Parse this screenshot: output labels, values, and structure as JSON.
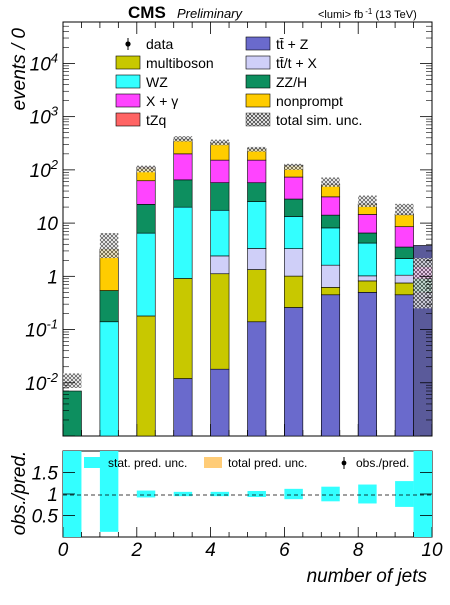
{
  "header": {
    "cms": "CMS",
    "preliminary": "Preliminary",
    "lumi": "<lumi> fb",
    "lumi_sup": "-1",
    "lumi_energy": "(13 TeV)"
  },
  "colors": {
    "data": "#000000",
    "multiboson": "#c8c800",
    "WZ": "#33ffff",
    "X_gamma": "#ff44ff",
    "tZq": "#ff6464",
    "ttZ": "#6a6acc",
    "ttX": "#cfcff8",
    "ZZH": "#0d8f5f",
    "nonprompt": "#ffcc00",
    "stat_unc": "#33ffff",
    "total_unc": "#ffcc77",
    "overflow": "#5a5a9a"
  },
  "chart_data": [
    {
      "type": "bar",
      "stacked": true,
      "log_y": true,
      "title": "",
      "xlabel": "",
      "ylabel": "events / 0",
      "xlim": [
        0,
        10
      ],
      "ylim": [
        0.001,
        60000
      ],
      "y_tick_labels": [
        "10^{-2}",
        "10^{-1}",
        "1",
        "10",
        "10^{2}",
        "10^{3}",
        "10^{4}"
      ],
      "bin_edges": [
        0,
        1,
        2,
        3,
        4,
        5,
        6,
        7,
        8,
        9,
        10
      ],
      "bar_ranges": [
        [
          0,
          0.5
        ],
        [
          1,
          1.5
        ],
        [
          2,
          2.5
        ],
        [
          3,
          3.5
        ],
        [
          4,
          4.5
        ],
        [
          5,
          5.5
        ],
        [
          6,
          6.5
        ],
        [
          7,
          7.5
        ],
        [
          8,
          8.5
        ],
        [
          9,
          9.5
        ],
        [
          9.5,
          10
        ]
      ],
      "series": [
        {
          "key": "ttZ",
          "name": "tt̄ + Z",
          "values": [
            0,
            0,
            0,
            0.012,
            0.018,
            0.14,
            0.26,
            0.45,
            0.5,
            0.45,
            0
          ]
        },
        {
          "key": "multiboson",
          "name": "multiboson",
          "values": [
            0,
            0,
            0.18,
            0.9,
            1.1,
            1.2,
            0.75,
            0.17,
            0.32,
            0.3,
            0
          ]
        },
        {
          "key": "ttX",
          "name": "tt̄/t + X",
          "values": [
            0,
            0,
            0,
            0,
            1.3,
            2.0,
            2.3,
            1.0,
            0.2,
            0.3,
            0
          ]
        },
        {
          "key": "WZ",
          "name": "WZ",
          "values": [
            0,
            0.14,
            6.3,
            19,
            15,
            22,
            10,
            6.5,
            3.2,
            1.1,
            0
          ]
        },
        {
          "key": "ZZH",
          "name": "ZZ/H",
          "values": [
            0.007,
            0.4,
            16,
            45,
            40,
            32,
            15,
            6,
            2.3,
            1.4,
            0
          ]
        },
        {
          "key": "X_gamma",
          "name": "X + γ",
          "values": [
            0,
            0,
            40,
            135,
            95,
            95,
            45,
            17,
            8,
            5,
            0
          ]
        },
        {
          "key": "nonprompt",
          "name": "nonprompt",
          "values": [
            0,
            2.7,
            45,
            170,
            170,
            95,
            48,
            22,
            8,
            6,
            0
          ]
        },
        {
          "key": "tZq",
          "name": "tZq",
          "values": [
            0,
            0,
            5,
            7,
            5,
            4,
            2,
            1,
            0.5,
            0.3,
            0
          ]
        }
      ],
      "overflow": {
        "range": [
          9.5,
          10
        ],
        "base": 0.3,
        "top": 3.8
      },
      "total_unc": [
        [
          0.008,
          0.015
        ],
        [
          2.2,
          6.5
        ],
        [
          90,
          120
        ],
        [
          340,
          430
        ],
        [
          290,
          370
        ],
        [
          220,
          270
        ],
        [
          100,
          130
        ],
        [
          48,
          72
        ],
        [
          20,
          33
        ],
        [
          14,
          23
        ],
        [
          0.25,
          2.2
        ]
      ],
      "data": [],
      "legend": {
        "placement": "top",
        "entries": [
          {
            "key": "data",
            "label": "data",
            "style": "marker"
          },
          {
            "key": "ttZ",
            "label": "tt̄ + Z",
            "style": "box"
          },
          {
            "key": "multiboson",
            "label": "multiboson",
            "style": "box"
          },
          {
            "key": "ttX",
            "label": "tt̄/t + X",
            "style": "box"
          },
          {
            "key": "WZ",
            "label": "WZ",
            "style": "box"
          },
          {
            "key": "ZZH",
            "label": "ZZ/H",
            "style": "box"
          },
          {
            "key": "X_gamma",
            "label": "X + γ",
            "style": "box"
          },
          {
            "key": "nonprompt",
            "label": "nonprompt",
            "style": "box"
          },
          {
            "key": "tZq",
            "label": "tZq",
            "style": "box"
          },
          {
            "key": "total_unc",
            "label": "total sim. unc.",
            "style": "hatch"
          }
        ]
      }
    },
    {
      "type": "bar",
      "title": "",
      "xlabel": "number of jets",
      "ylabel": "obs./pred.",
      "xlim": [
        0,
        10
      ],
      "ylim": [
        0,
        2
      ],
      "x_ticks": [
        0,
        2,
        4,
        6,
        8,
        10
      ],
      "y_ticks": [
        0.5,
        1,
        1.5
      ],
      "y_tick_labels": [
        "0.5",
        "1",
        "1.5"
      ],
      "reference_line": 1,
      "stat_unc": [
        {
          "x": [
            0,
            0.5
          ],
          "lo": 0,
          "hi": 2
        },
        {
          "x": [
            1,
            1.5
          ],
          "lo": 0.12,
          "hi": 2
        },
        {
          "x": [
            2,
            2.5
          ],
          "lo": 0.92,
          "hi": 1.08
        },
        {
          "x": [
            3,
            3.5
          ],
          "lo": 0.95,
          "hi": 1.05
        },
        {
          "x": [
            4,
            4.5
          ],
          "lo": 0.95,
          "hi": 1.05
        },
        {
          "x": [
            5,
            5.5
          ],
          "lo": 0.93,
          "hi": 1.07
        },
        {
          "x": [
            6,
            6.5
          ],
          "lo": 0.88,
          "hi": 1.12
        },
        {
          "x": [
            7,
            7.5
          ],
          "lo": 0.83,
          "hi": 1.17
        },
        {
          "x": [
            8,
            8.5
          ],
          "lo": 0.78,
          "hi": 1.22
        },
        {
          "x": [
            9,
            9.5
          ],
          "lo": 0.7,
          "hi": 1.3
        },
        {
          "x": [
            9.5,
            10
          ],
          "lo": 0,
          "hi": 2
        }
      ],
      "legend": {
        "placement": "top",
        "entries": [
          {
            "key": "stat_unc",
            "label": "stat. pred. unc.",
            "style": "box"
          },
          {
            "key": "total_unc",
            "label": "total pred. unc.",
            "style": "box"
          },
          {
            "key": "data",
            "label": "obs./pred.",
            "style": "marker"
          }
        ]
      }
    }
  ]
}
